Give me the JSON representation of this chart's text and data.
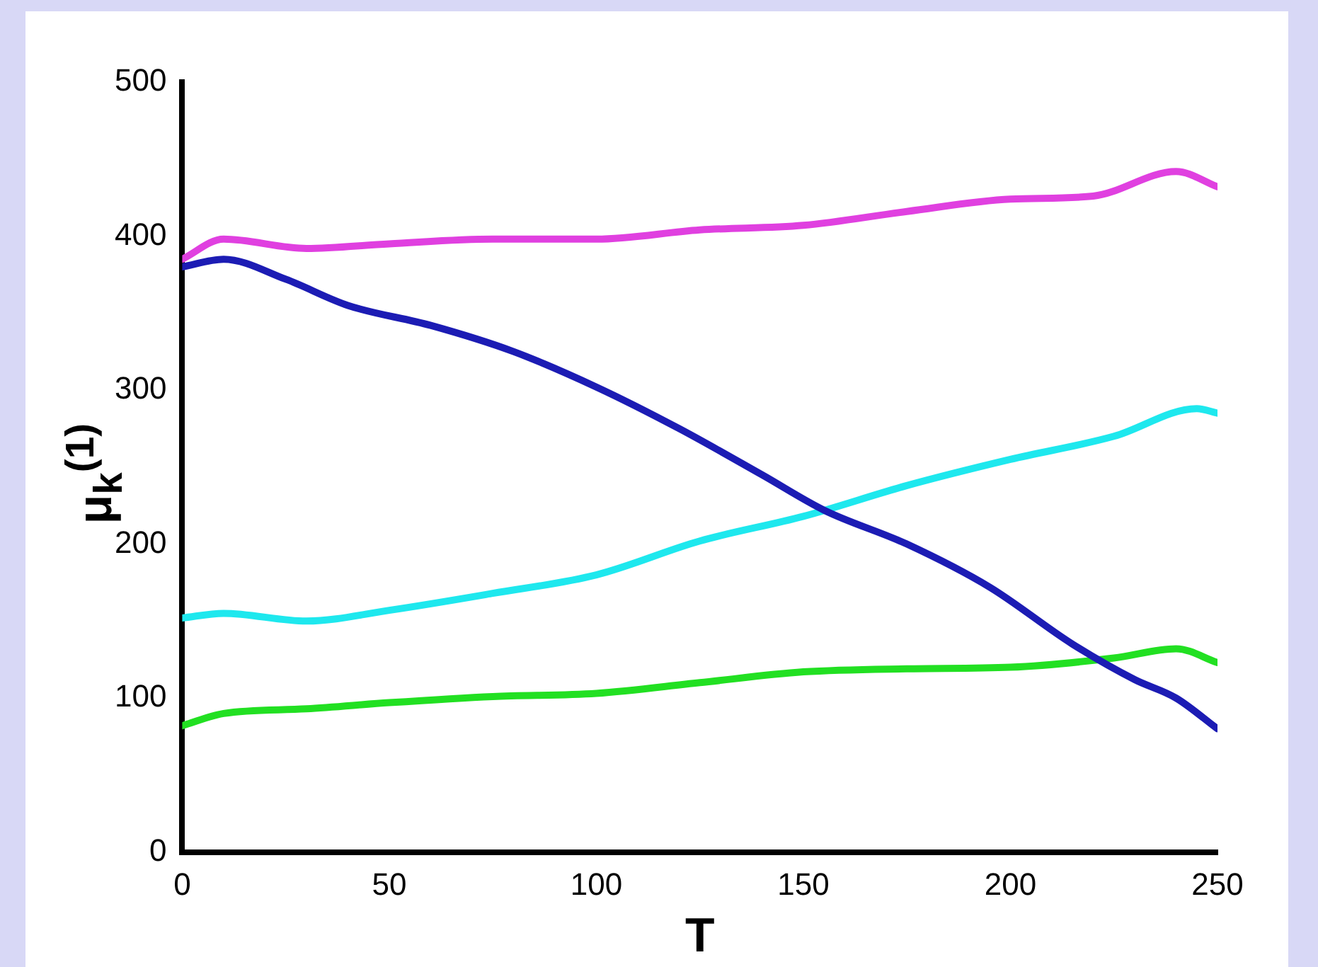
{
  "chart_data": {
    "type": "line",
    "xlabel": "T",
    "ylabel": "μ$_{k}$$^{(1)}$",
    "xlim": [
      0,
      250
    ],
    "xticks": [
      0,
      50,
      100,
      150,
      200,
      250
    ],
    "ylim": [
      0,
      500
    ],
    "yticks": [
      0,
      100,
      200,
      300,
      400,
      500
    ],
    "grid": false,
    "legend": false,
    "marker": "none",
    "line_style": "solid",
    "series": [
      {
        "color": "#e040e0",
        "x": [
          0,
          10,
          30,
          50,
          75,
          100,
          125,
          150,
          175,
          200,
          220,
          240,
          250
        ],
        "values": [
          385,
          398,
          392,
          395,
          398,
          398,
          404,
          407,
          416,
          424,
          426,
          442,
          432
        ]
      },
      {
        "color": "#1c1cb4",
        "x": [
          0,
          10,
          25,
          40,
          60,
          80,
          100,
          120,
          140,
          155,
          175,
          195,
          215,
          230,
          240,
          250
        ],
        "values": [
          380,
          385,
          372,
          355,
          342,
          325,
          302,
          275,
          245,
          222,
          200,
          172,
          135,
          112,
          100,
          80
        ]
      },
      {
        "color": "#1ee8ee",
        "x": [
          0,
          10,
          30,
          50,
          75,
          100,
          125,
          150,
          175,
          200,
          225,
          245,
          250
        ],
        "values": [
          152,
          155,
          150,
          157,
          168,
          180,
          202,
          218,
          238,
          255,
          270,
          288,
          285
        ]
      },
      {
        "color": "#22e022",
        "x": [
          0,
          10,
          30,
          50,
          75,
          100,
          125,
          150,
          175,
          200,
          225,
          240,
          250
        ],
        "values": [
          82,
          90,
          93,
          97,
          101,
          103,
          110,
          117,
          119,
          120,
          126,
          132,
          123
        ]
      }
    ]
  }
}
